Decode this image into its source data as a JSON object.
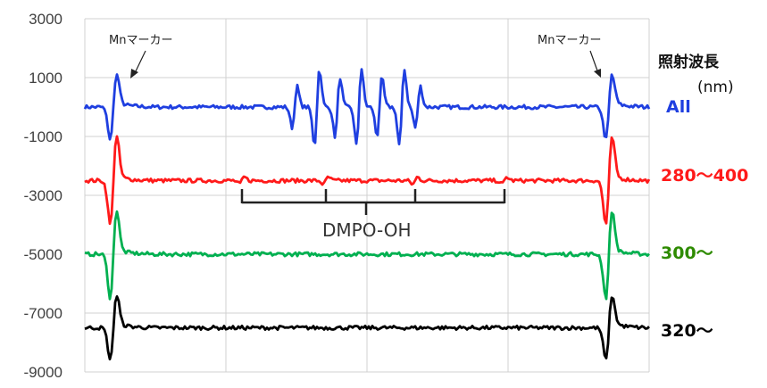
{
  "chart_data": {
    "type": "line",
    "ylim": [
      -9000,
      3000
    ],
    "yticks": [
      3000,
      1000,
      -1000,
      -3000,
      -5000,
      -7000,
      -9000
    ],
    "ytick_labels": [
      "3000",
      "1000",
      "-1000",
      "-3000",
      "-5000",
      "-7000",
      "-9000"
    ],
    "grid": true,
    "series": [
      {
        "name": "All",
        "color": "#1f3fe0",
        "baseline": 0,
        "features": [
          "mn-marker",
          "dmpo-oh-signal",
          "mn-marker"
        ]
      },
      {
        "name": "280～400",
        "color": "#ff1a1a",
        "baseline": -2500,
        "features": [
          "mn-marker",
          "weak-dmpo-oh",
          "mn-marker"
        ]
      },
      {
        "name": "300～",
        "color": "#00b050",
        "baseline": -5000,
        "features": [
          "mn-marker",
          "mn-marker"
        ]
      },
      {
        "name": "320～",
        "color": "#000000",
        "baseline": -7500,
        "features": [
          "mn-marker",
          "mn-marker"
        ]
      }
    ],
    "annotations": {
      "mn_marker_left": "Mnマーカー",
      "mn_marker_right": "Mnマーカー",
      "dmpo_label": "DMPO-OH"
    },
    "legend": {
      "title": "照射波長",
      "unit": "(nm)",
      "placement": "right"
    }
  }
}
